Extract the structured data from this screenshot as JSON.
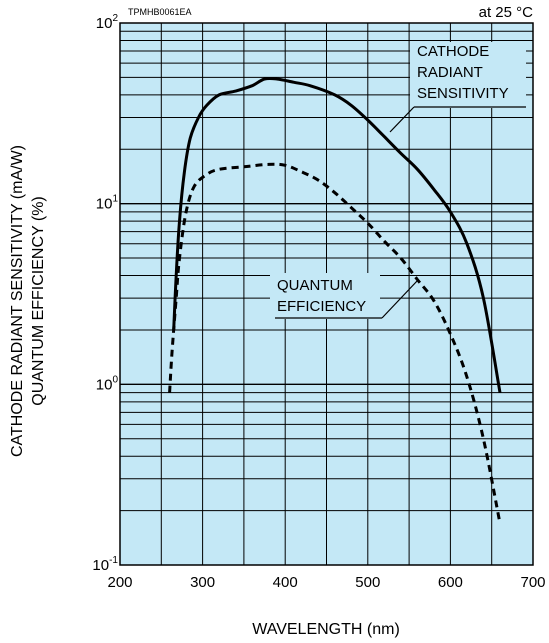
{
  "chart_data": {
    "type": "line",
    "header_code": "TPMHB0061EA",
    "condition": "at 25 °C",
    "xlabel": "WAVELENGTH (nm)",
    "ylabel_line1": "CATHODE RADIANT SENSITIVITY (mA/W)",
    "ylabel_line2": "QUANTUM EFFICIENCY (%)",
    "xlim": [
      200,
      700
    ],
    "ylim": [
      0.1,
      100
    ],
    "yscale": "log",
    "grid": true,
    "background_color": "#c4e8f6",
    "x_ticks": [
      "200",
      "300",
      "400",
      "500",
      "600",
      "700"
    ],
    "y_ticks": [
      {
        "base": "10",
        "exp": "2",
        "value": 100
      },
      {
        "base": "10",
        "exp": "1",
        "value": 10
      },
      {
        "base": "10",
        "exp": "0",
        "value": 1
      },
      {
        "base": "10",
        "exp": "-1",
        "value": 0.1
      }
    ],
    "series": [
      {
        "name": "CATHODE RADIANT SENSITIVITY",
        "label_lines": [
          "CATHODE",
          "RADIANT",
          "SENSITIVITY"
        ],
        "style": "solid",
        "color": "#000000",
        "points": [
          [
            265,
            2.0
          ],
          [
            268,
            4.0
          ],
          [
            272,
            8.0
          ],
          [
            278,
            15.0
          ],
          [
            285,
            23.0
          ],
          [
            295,
            30.0
          ],
          [
            305,
            35.0
          ],
          [
            320,
            40.0
          ],
          [
            340,
            42.0
          ],
          [
            360,
            45.0
          ],
          [
            375,
            49.0
          ],
          [
            390,
            49.0
          ],
          [
            410,
            47.0
          ],
          [
            430,
            45.0
          ],
          [
            460,
            40.0
          ],
          [
            480,
            35.0
          ],
          [
            500,
            29.0
          ],
          [
            520,
            23.5
          ],
          [
            540,
            19.0
          ],
          [
            560,
            15.5
          ],
          [
            580,
            12.0
          ],
          [
            600,
            9.0
          ],
          [
            620,
            6.0
          ],
          [
            640,
            3.0
          ],
          [
            660,
            0.9
          ]
        ]
      },
      {
        "name": "QUANTUM EFFICIENCY",
        "label_lines": [
          "QUANTUM",
          "EFFICIENCY"
        ],
        "style": "dashed",
        "color": "#000000",
        "points": [
          [
            260,
            0.9
          ],
          [
            263,
            1.5
          ],
          [
            268,
            3.0
          ],
          [
            272,
            5.0
          ],
          [
            280,
            9.0
          ],
          [
            290,
            12.5
          ],
          [
            305,
            14.5
          ],
          [
            320,
            15.5
          ],
          [
            350,
            16.0
          ],
          [
            380,
            16.5
          ],
          [
            400,
            16.3
          ],
          [
            420,
            15.0
          ],
          [
            440,
            13.5
          ],
          [
            460,
            11.5
          ],
          [
            480,
            9.5
          ],
          [
            500,
            7.8
          ],
          [
            520,
            6.2
          ],
          [
            540,
            5.0
          ],
          [
            560,
            3.8
          ],
          [
            580,
            2.9
          ],
          [
            600,
            1.9
          ],
          [
            620,
            1.1
          ],
          [
            640,
            0.5
          ],
          [
            660,
            0.17
          ]
        ]
      }
    ]
  }
}
